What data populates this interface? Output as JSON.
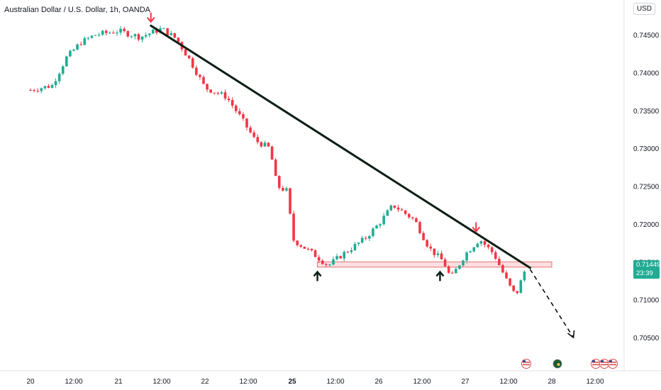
{
  "header": {
    "symbol_title": "Australian Dollar / U.S. Dollar, 1h, OANDA",
    "currency": "USD"
  },
  "price_tag": {
    "price": "0.71449",
    "countdown": "23:39"
  },
  "colors": {
    "up": "#22ab94",
    "down": "#f23645",
    "trendline": "#0c1f14",
    "zone_fill": "#f7c3c6",
    "zone_stroke": "#e57373",
    "marker_up": "#0c2318",
    "marker_down": "#f23645"
  },
  "chart_data": {
    "type": "candlestick",
    "y_axis_labels": [
      "0.74500",
      "0.74000",
      "0.73500",
      "0.73000",
      "0.72500",
      "0.72000",
      "0.71500",
      "0.71000",
      "0.70500"
    ],
    "x_axis_labels": [
      "20",
      "12:00",
      "21",
      "12:00",
      "22",
      "12:00",
      "25",
      "12:00",
      "26",
      "12:00",
      "27",
      "12:00",
      "28",
      "12:00"
    ],
    "bold_x_labels": [
      "25"
    ],
    "ylim": [
      0.703,
      0.748
    ],
    "series_close_points": [
      {
        "x": "20 00:00",
        "y": 0.7377
      },
      {
        "x": "20 06:00",
        "y": 0.7383
      },
      {
        "x": "20 10:00",
        "y": 0.742
      },
      {
        "x": "20 14:00",
        "y": 0.744
      },
      {
        "x": "20 18:00",
        "y": 0.745
      },
      {
        "x": "21 00:00",
        "y": 0.7455
      },
      {
        "x": "21 06:00",
        "y": 0.7447
      },
      {
        "x": "21 12:00",
        "y": 0.7458
      },
      {
        "x": "21 16:00",
        "y": 0.7445
      },
      {
        "x": "21 20:00",
        "y": 0.7415
      },
      {
        "x": "22 00:00",
        "y": 0.738
      },
      {
        "x": "22 06:00",
        "y": 0.7368
      },
      {
        "x": "22 10:00",
        "y": 0.734
      },
      {
        "x": "22 14:00",
        "y": 0.731
      },
      {
        "x": "22 18:00",
        "y": 0.73
      },
      {
        "x": "22 20:00",
        "y": 0.725
      },
      {
        "x": "22 23:00",
        "y": 0.7243
      },
      {
        "x": "25 00:00",
        "y": 0.718
      },
      {
        "x": "25 06:00",
        "y": 0.716
      },
      {
        "x": "25 10:00",
        "y": 0.7145
      },
      {
        "x": "25 14:00",
        "y": 0.716
      },
      {
        "x": "25 20:00",
        "y": 0.718
      },
      {
        "x": "26 00:00",
        "y": 0.72
      },
      {
        "x": "26 04:00",
        "y": 0.7225
      },
      {
        "x": "26 10:00",
        "y": 0.7205
      },
      {
        "x": "26 14:00",
        "y": 0.7168
      },
      {
        "x": "26 18:00",
        "y": 0.715
      },
      {
        "x": "26 20:00",
        "y": 0.7128
      },
      {
        "x": "27 00:00",
        "y": 0.716
      },
      {
        "x": "27 04:00",
        "y": 0.718
      },
      {
        "x": "27 08:00",
        "y": 0.716
      },
      {
        "x": "27 12:00",
        "y": 0.712
      },
      {
        "x": "27 14:00",
        "y": 0.7105
      },
      {
        "x": "27 17:00",
        "y": 0.7145
      }
    ],
    "trendline": {
      "from": {
        "x": "21 09:00",
        "y": 0.7462
      },
      "to": {
        "x": "27 18:00",
        "y": 0.7142
      }
    },
    "projection": {
      "from": {
        "x": "27 18:00",
        "y": 0.714
      },
      "to": {
        "x": "28 06:00",
        "y": 0.705
      }
    },
    "support_zone": {
      "y_low": 0.7143,
      "y_high": 0.715,
      "x_from": "25 07:00",
      "x_to": "28 00:00"
    },
    "markers": [
      {
        "type": "arrow-down",
        "x": "21 09:00",
        "y": 0.747
      },
      {
        "type": "arrow-down",
        "x": "27 03:00",
        "y": 0.7193
      },
      {
        "type": "arrow-up",
        "x": "25 07:00",
        "y": 0.7133
      },
      {
        "type": "arrow-up",
        "x": "26 17:00",
        "y": 0.7133
      }
    ],
    "grid": false
  },
  "event_icons": [
    "us-flag-icon",
    "au-flag-icon",
    "us-flag-icon",
    "us-flag-icon",
    "us-flag-icon"
  ]
}
